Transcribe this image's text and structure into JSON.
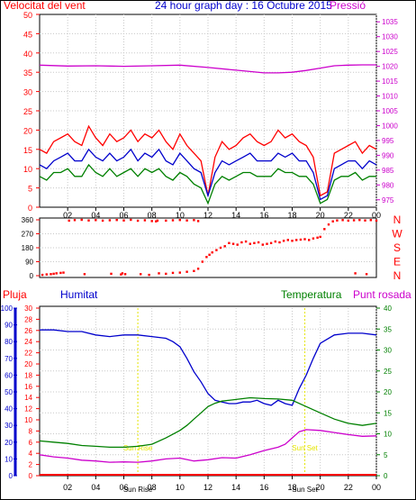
{
  "chart_data": [
    {
      "type": "line",
      "title": "24 hour graph day : 16 Octubre 2015",
      "left_axis_label": "Velocitat del vent",
      "right_axis_label": "Pressió",
      "x_tick_labels": [
        "02",
        "04",
        "06",
        "08",
        "10",
        "12",
        "14",
        "16",
        "18",
        "20",
        "22",
        "00"
      ],
      "y_left_ticks": [
        0,
        5,
        10,
        15,
        20,
        25,
        30,
        35,
        40,
        45,
        50
      ],
      "y_right_ticks": [
        975,
        980,
        985,
        990,
        995,
        1000,
        1005,
        1010,
        1015,
        1020,
        1025,
        1030,
        1035
      ],
      "ylim_left": [
        0,
        50
      ],
      "ylim_right": [
        972.5,
        1037.5
      ],
      "x_range_hours": [
        0,
        24
      ],
      "grid": true,
      "series": [
        {
          "key": "gust",
          "color": "#ff0000",
          "x": [
            0,
            0.5,
            1,
            1.5,
            2,
            2.5,
            3,
            3.5,
            4,
            4.5,
            5,
            5.5,
            6,
            6.5,
            7,
            7.5,
            8,
            8.5,
            9,
            9.5,
            10,
            10.5,
            11,
            11.5,
            12,
            12.5,
            13,
            13.5,
            14,
            14.5,
            15,
            15.5,
            16,
            16.5,
            17,
            17.5,
            18,
            18.5,
            19,
            19.5,
            20,
            20.5,
            21,
            21.5,
            22,
            22.5,
            23,
            23.5,
            24
          ],
          "values": [
            15,
            14,
            17,
            18,
            19,
            17,
            16,
            21,
            18,
            16,
            19,
            17,
            18,
            20,
            17,
            19,
            18,
            20,
            17,
            15,
            19,
            16,
            14,
            12,
            3,
            13,
            17,
            15,
            16,
            18,
            19,
            17,
            16,
            17,
            20,
            18,
            19,
            17,
            16,
            13,
            3,
            4,
            14,
            15,
            16,
            17,
            14,
            16,
            15
          ]
        },
        {
          "key": "avg",
          "color": "#0000cc",
          "x": [
            0,
            0.5,
            1,
            1.5,
            2,
            2.5,
            3,
            3.5,
            4,
            4.5,
            5,
            5.5,
            6,
            6.5,
            7,
            7.5,
            8,
            8.5,
            9,
            9.5,
            10,
            10.5,
            11,
            11.5,
            12,
            12.5,
            13,
            13.5,
            14,
            14.5,
            15,
            15.5,
            16,
            16.5,
            17,
            17.5,
            18,
            18.5,
            19,
            19.5,
            20,
            20.5,
            21,
            21.5,
            22,
            22.5,
            23,
            23.5,
            24
          ],
          "values": [
            11,
            10,
            12,
            13,
            14,
            12,
            12,
            15,
            13,
            12,
            14,
            12,
            13,
            15,
            12,
            14,
            13,
            15,
            12,
            11,
            14,
            12,
            10,
            9,
            3,
            9,
            12,
            11,
            12,
            13,
            14,
            12,
            12,
            12,
            14,
            13,
            14,
            12,
            12,
            9,
            2,
            3,
            10,
            11,
            12,
            12,
            10,
            12,
            11
          ]
        },
        {
          "key": "low",
          "color": "#008000",
          "x": [
            0,
            0.5,
            1,
            1.5,
            2,
            2.5,
            3,
            3.5,
            4,
            4.5,
            5,
            5.5,
            6,
            6.5,
            7,
            7.5,
            8,
            8.5,
            9,
            9.5,
            10,
            10.5,
            11,
            11.5,
            12,
            12.5,
            13,
            13.5,
            14,
            14.5,
            15,
            15.5,
            16,
            16.5,
            17,
            17.5,
            18,
            18.5,
            19,
            19.5,
            20,
            20.5,
            21,
            21.5,
            22,
            22.5,
            23,
            23.5,
            24
          ],
          "values": [
            8,
            7,
            9,
            9,
            10,
            8,
            8,
            11,
            9,
            8,
            10,
            8,
            9,
            10,
            8,
            10,
            9,
            10,
            8,
            7,
            9,
            8,
            6,
            5,
            1,
            6,
            8,
            7,
            8,
            9,
            9,
            8,
            8,
            8,
            10,
            9,
            9,
            8,
            8,
            6,
            1,
            2,
            7,
            8,
            8,
            9,
            7,
            8,
            8
          ]
        },
        {
          "key": "pressure",
          "color": "#cc00cc",
          "axis": "right",
          "x": [
            0,
            2,
            4,
            6,
            8,
            10,
            12,
            14,
            16,
            17,
            18,
            19,
            20,
            21,
            22,
            23,
            24
          ],
          "values": [
            1020.4,
            1020.1,
            1020.2,
            1020.0,
            1020.2,
            1020.4,
            1019.6,
            1018.7,
            1017.8,
            1017.8,
            1018.0,
            1018.6,
            1019.4,
            1020.2,
            1020.4,
            1020.5,
            1020.5
          ]
        }
      ]
    },
    {
      "type": "scatter",
      "ylim": [
        0,
        360
      ],
      "y_ticks": [
        0,
        90,
        180,
        270,
        360
      ],
      "compass_labels": [
        "N",
        "W",
        "S",
        "E",
        "N"
      ],
      "points": [
        [
          0.2,
          5
        ],
        [
          0.5,
          8
        ],
        [
          0.8,
          10
        ],
        [
          1.0,
          12
        ],
        [
          1.2,
          15
        ],
        [
          1.5,
          18
        ],
        [
          1.7,
          20
        ],
        [
          2.1,
          355
        ],
        [
          2.5,
          358
        ],
        [
          3.0,
          360
        ],
        [
          3.5,
          356
        ],
        [
          4.0,
          358
        ],
        [
          4.5,
          355
        ],
        [
          5.0,
          357
        ],
        [
          5.5,
          359
        ],
        [
          6.0,
          356
        ],
        [
          6.5,
          360
        ],
        [
          7.0,
          354
        ],
        [
          7.5,
          357
        ],
        [
          8.0,
          352
        ],
        [
          8.3,
          350
        ],
        [
          8.4,
          355
        ],
        [
          9.0,
          355
        ],
        [
          9.5,
          357
        ],
        [
          10.0,
          359
        ],
        [
          10.5,
          356
        ],
        [
          11.0,
          358
        ],
        [
          11.3,
          352
        ],
        [
          3.2,
          10
        ],
        [
          5.1,
          12
        ],
        [
          5.8,
          8
        ],
        [
          5.9,
          15
        ],
        [
          6.1,
          10
        ],
        [
          7.2,
          10
        ],
        [
          7.8,
          5
        ],
        [
          8.5,
          15
        ],
        [
          9.0,
          12
        ],
        [
          9.5,
          18
        ],
        [
          10.0,
          20
        ],
        [
          10.5,
          25
        ],
        [
          11.0,
          30
        ],
        [
          11.3,
          45
        ],
        [
          11.6,
          90
        ],
        [
          11.9,
          120
        ],
        [
          12.1,
          135
        ],
        [
          12.3,
          150
        ],
        [
          12.6,
          165
        ],
        [
          12.9,
          180
        ],
        [
          13.2,
          190
        ],
        [
          13.5,
          210
        ],
        [
          13.8,
          205
        ],
        [
          14.1,
          200
        ],
        [
          14.4,
          215
        ],
        [
          14.7,
          220
        ],
        [
          15.0,
          205
        ],
        [
          15.3,
          210
        ],
        [
          15.6,
          215
        ],
        [
          15.9,
          200
        ],
        [
          16.2,
          205
        ],
        [
          16.5,
          210
        ],
        [
          16.8,
          220
        ],
        [
          17.1,
          215
        ],
        [
          17.4,
          225
        ],
        [
          17.7,
          230
        ],
        [
          18.0,
          225
        ],
        [
          18.3,
          230
        ],
        [
          18.6,
          232
        ],
        [
          18.9,
          235
        ],
        [
          19.2,
          230
        ],
        [
          19.5,
          240
        ],
        [
          19.8,
          245
        ],
        [
          20.0,
          250
        ],
        [
          20.3,
          300
        ],
        [
          20.6,
          330
        ],
        [
          20.9,
          350
        ],
        [
          21.2,
          356
        ],
        [
          21.6,
          358
        ],
        [
          22.0,
          355
        ],
        [
          22.4,
          357
        ],
        [
          22.8,
          359
        ],
        [
          23.2,
          356
        ],
        [
          23.6,
          358
        ],
        [
          24.0,
          355
        ],
        [
          22.5,
          15
        ],
        [
          23.3,
          10
        ]
      ]
    },
    {
      "type": "line",
      "left_axis_label": "Pluja",
      "humidity_label": "Humitat",
      "temperature_label": "Temperatura",
      "dewpoint_label": "Punt rosada",
      "x_tick_labels": [
        "02",
        "04",
        "06",
        "08",
        "10",
        "12",
        "14",
        "16",
        "18",
        "20",
        "22",
        "00"
      ],
      "rain_ticks": [
        0,
        10,
        20,
        30,
        40,
        50,
        60,
        70,
        80,
        90,
        100
      ],
      "humidity_ticks": [
        0,
        2,
        4,
        6,
        8,
        10,
        12,
        14,
        16,
        18,
        20,
        22,
        24,
        26,
        28,
        30
      ],
      "temp_ticks": [
        0,
        5,
        10,
        15,
        20,
        25,
        30,
        35,
        40
      ],
      "ylim_humidity": [
        0,
        100
      ],
      "ylim_temp": [
        0,
        40
      ],
      "sun_rise_label": "Sun Rise",
      "sun_set_label": "Sun Set",
      "sun_rise_hour": 7.0,
      "sun_set_hour": 18.9,
      "series": [
        {
          "key": "humidity",
          "color": "#0000cc",
          "x": [
            0,
            1,
            2,
            3,
            4,
            5,
            6,
            7,
            8,
            9,
            9.5,
            10,
            10.5,
            11,
            11.5,
            12,
            12.5,
            13,
            13.5,
            14,
            14.5,
            15,
            15.5,
            16,
            16.5,
            17,
            17.5,
            18,
            18.5,
            19,
            19.5,
            20,
            21,
            22,
            23,
            24
          ],
          "values": [
            87,
            87,
            86,
            86,
            84,
            83,
            84,
            84,
            83,
            82,
            80,
            77,
            70,
            62,
            56,
            49,
            45,
            44,
            43,
            43,
            44,
            44,
            45,
            43,
            42,
            45,
            43,
            42,
            52,
            60,
            70,
            79,
            84,
            85,
            85,
            84
          ]
        },
        {
          "key": "temperature",
          "color": "#008000",
          "x": [
            0,
            1,
            2,
            3,
            4,
            5,
            6,
            7,
            8,
            9,
            10,
            10.5,
            11,
            11.5,
            12,
            12.5,
            13,
            14,
            15,
            16,
            17,
            18,
            19,
            20,
            21,
            22,
            23,
            24
          ],
          "values": [
            8.3,
            8.0,
            7.7,
            7.2,
            7.0,
            6.8,
            6.8,
            7.0,
            7.5,
            9.0,
            10.8,
            12.0,
            13.5,
            15.0,
            16.5,
            17.3,
            17.8,
            18.2,
            18.6,
            18.4,
            18.3,
            18.0,
            16.5,
            15.0,
            13.5,
            12.5,
            12.0,
            12.5
          ]
        },
        {
          "key": "dewpoint",
          "color": "#cc00cc",
          "x": [
            0,
            1,
            2,
            3,
            4,
            5,
            6,
            7,
            8,
            9,
            10,
            11,
            12,
            13,
            14,
            15,
            16,
            17,
            17.5,
            18,
            18.5,
            19,
            20,
            21,
            22,
            23,
            24
          ],
          "values": [
            5.0,
            4.5,
            4.2,
            3.7,
            3.5,
            3.2,
            3.3,
            3.2,
            3.5,
            4.0,
            4.2,
            3.5,
            3.8,
            4.3,
            4.2,
            5.0,
            6.0,
            6.8,
            7.5,
            9.0,
            10.5,
            11.0,
            10.8,
            10.3,
            9.8,
            9.4,
            9.5
          ]
        }
      ]
    }
  ],
  "colors": {
    "red": "#ff0000",
    "blue": "#0000cc",
    "green": "#008000",
    "magenta": "#cc00cc",
    "yellow": "#e6e600"
  }
}
